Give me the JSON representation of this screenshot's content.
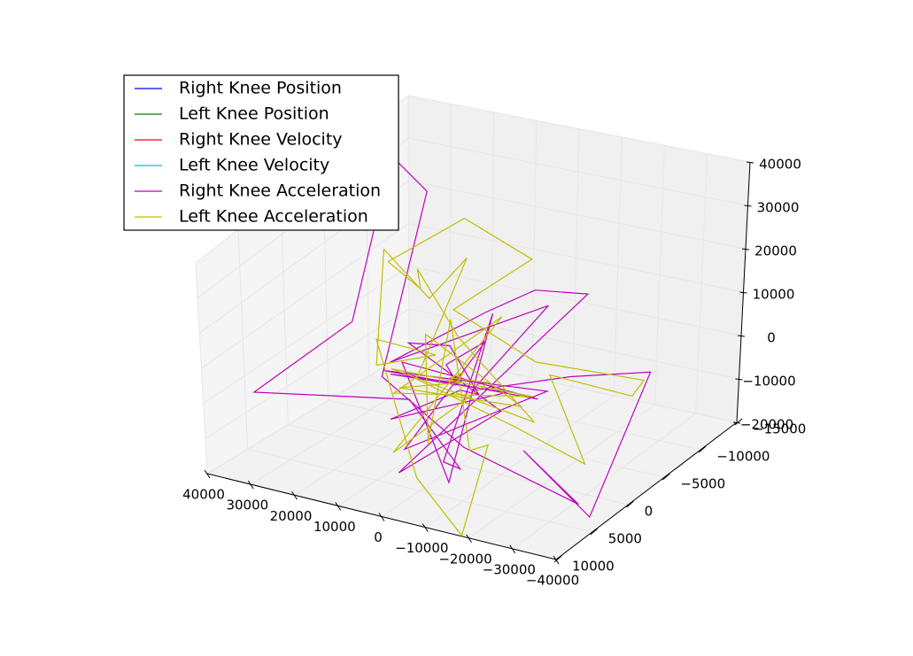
{
  "chart_data": {
    "type": "line",
    "projection": "3d",
    "title": "",
    "xlabel": "",
    "ylabel": "",
    "zlabel": "",
    "xlim": [
      -40000,
      40000
    ],
    "ylim": [
      -15000,
      10000
    ],
    "zlim": [
      -20000,
      40000
    ],
    "x_ticks": [
      "−40000",
      "−30000",
      "−20000",
      "−10000",
      "0",
      "10000",
      "20000",
      "30000",
      "40000"
    ],
    "y_ticks": [
      "−15000",
      "−10000",
      "−5000",
      "0",
      "5000",
      "10000"
    ],
    "z_ticks": [
      "−20000",
      "−10000",
      "0",
      "10000",
      "20000",
      "30000",
      "40000"
    ],
    "grid": true,
    "legend_position": "top-left",
    "series": [
      {
        "name": "Right Knee Position",
        "color": "#0000ff",
        "points": [
          [
            0,
            0,
            0
          ],
          [
            50,
            30,
            40
          ],
          [
            90,
            -20,
            60
          ],
          [
            40,
            10,
            20
          ]
        ]
      },
      {
        "name": "Left Knee Position",
        "color": "#008000",
        "points": [
          [
            0,
            0,
            0
          ],
          [
            -40,
            20,
            30
          ],
          [
            -80,
            -10,
            50
          ],
          [
            -20,
            5,
            10
          ]
        ]
      },
      {
        "name": "Right Knee Velocity",
        "color": "#ff0000",
        "points": [
          [
            0,
            0,
            0
          ],
          [
            600,
            300,
            800
          ],
          [
            -500,
            -200,
            900
          ],
          [
            400,
            100,
            -600
          ],
          [
            -300,
            250,
            500
          ],
          [
            200,
            -300,
            -400
          ]
        ]
      },
      {
        "name": "Left Knee Velocity",
        "color": "#00bfbf",
        "points": [
          [
            0,
            0,
            0
          ],
          [
            -700,
            200,
            600
          ],
          [
            500,
            -300,
            -800
          ],
          [
            -400,
            150,
            700
          ],
          [
            300,
            200,
            -500
          ],
          [
            -200,
            -250,
            400
          ]
        ]
      },
      {
        "name": "Right Knee Acceleration",
        "color": "#bf00bf",
        "points": [
          [
            0,
            0,
            0
          ],
          [
            8000,
            4000,
            6000
          ],
          [
            -6000,
            -3000,
            -5000
          ],
          [
            12000,
            2000,
            -9000
          ],
          [
            -10000,
            5000,
            7000
          ],
          [
            6000,
            -6000,
            -12000
          ],
          [
            -4000,
            3000,
            14000
          ],
          [
            15000,
            -2000,
            4000
          ],
          [
            -12000,
            1000,
            -3000
          ],
          [
            3000,
            6000,
            -15000
          ],
          [
            -25000,
            -3000,
            22000
          ],
          [
            -22000,
            2000,
            29000
          ],
          [
            -3000,
            -2000,
            15000
          ],
          [
            8000,
            4000,
            9000
          ],
          [
            -14000,
            -4000,
            16000
          ],
          [
            -9000,
            3000,
            4000
          ],
          [
            -30000,
            2000,
            10000
          ],
          [
            -38000,
            -4000,
            5000
          ],
          [
            -36000,
            3000,
            -20000
          ],
          [
            -10000,
            -3000,
            -18000
          ],
          [
            -30000,
            1000,
            -21000
          ],
          [
            -5000,
            2000,
            -12000
          ],
          [
            10000,
            4000,
            5000
          ],
          [
            18000,
            -6000,
            35000
          ],
          [
            42000,
            -14000,
            27000
          ],
          [
            32000,
            -4000,
            3000
          ],
          [
            36000,
            6000,
            -2000
          ],
          [
            15000,
            -2000,
            -10000
          ],
          [
            5000,
            -3000,
            -26000
          ],
          [
            -2000,
            3000,
            -15000
          ],
          [
            14000,
            -12000,
            -2000
          ],
          [
            -5000,
            4000,
            -18000
          ],
          [
            9000,
            2000,
            6000
          ],
          [
            -8000,
            -6000,
            -10000
          ],
          [
            4000,
            7000,
            12000
          ],
          [
            -12000,
            -5000,
            -6000
          ],
          [
            7000,
            3000,
            -14000
          ],
          [
            -3000,
            -2000,
            8000
          ],
          [
            10000,
            -4000,
            -3000
          ],
          [
            0,
            0,
            0
          ]
        ]
      },
      {
        "name": "Left Knee Acceleration",
        "color": "#bfbf00",
        "points": [
          [
            0,
            0,
            0
          ],
          [
            -7000,
            3000,
            8000
          ],
          [
            9000,
            -4000,
            -6000
          ],
          [
            -11000,
            2000,
            5000
          ],
          [
            6000,
            5000,
            -12000
          ],
          [
            -5000,
            -3000,
            13000
          ],
          [
            13000,
            1000,
            -4000
          ],
          [
            -14000,
            -2000,
            -3000
          ],
          [
            4000,
            6000,
            11000
          ],
          [
            -9000,
            -5000,
            -14000
          ],
          [
            -8000,
            4000,
            18000
          ],
          [
            5000,
            2000,
            30000
          ],
          [
            12000,
            -2000,
            18000
          ],
          [
            4000,
            6000,
            38000
          ],
          [
            -6000,
            2000,
            44000
          ],
          [
            -12000,
            -3000,
            28000
          ],
          [
            -5000,
            3000,
            23000
          ],
          [
            -22000,
            2000,
            12000
          ],
          [
            -40000,
            -2000,
            6000
          ],
          [
            -32000,
            -5000,
            -3000
          ],
          [
            -18000,
            -2000,
            3000
          ],
          [
            -35000,
            3000,
            -8000
          ],
          [
            -15000,
            1000,
            -6000
          ],
          [
            2000,
            4000,
            6000
          ],
          [
            5000,
            -4000,
            24000
          ],
          [
            10000,
            -2000,
            16000
          ],
          [
            40000,
            -12000,
            8000
          ],
          [
            15000,
            2000,
            4000
          ],
          [
            20000,
            -8000,
            -8000
          ],
          [
            42000,
            -12000,
            -14000
          ],
          [
            8000,
            1000,
            -24000
          ],
          [
            -6000,
            3000,
            -32000
          ],
          [
            2000,
            -5000,
            -22000
          ],
          [
            -10000,
            4000,
            -9000
          ],
          [
            7000,
            -3000,
            10000
          ],
          [
            -4000,
            6000,
            -6000
          ],
          [
            11000,
            -2000,
            7000
          ],
          [
            -6000,
            -5000,
            -11000
          ],
          [
            6000,
            4000,
            3000
          ],
          [
            0,
            0,
            0
          ]
        ]
      }
    ]
  }
}
